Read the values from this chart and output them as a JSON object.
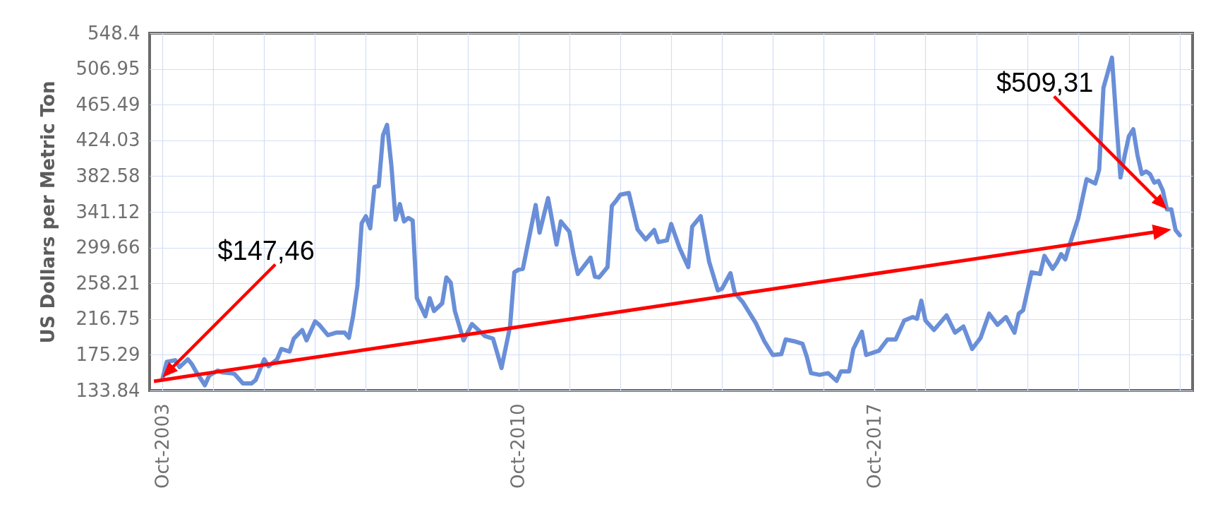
{
  "chart_data": {
    "type": "line",
    "ylabel": "US Dollars per Metric Ton",
    "x": [
      "2003-10",
      "2003-11",
      "2004-01",
      "2004-02",
      "2004-04",
      "2004-05",
      "2004-06",
      "2004-08",
      "2004-09",
      "2004-11",
      "2004-12",
      "2005-02",
      "2005-03",
      "2005-05",
      "2005-07",
      "2005-08",
      "2005-10",
      "2005-11",
      "2006-01",
      "2006-02",
      "2006-04",
      "2006-05",
      "2006-07",
      "2006-08",
      "2006-10",
      "2006-11",
      "2007-01",
      "2007-03",
      "2007-05",
      "2007-06",
      "2007-07",
      "2007-08",
      "2007-09",
      "2007-10",
      "2007-11",
      "2007-12",
      "2008-01",
      "2008-02",
      "2008-03",
      "2008-04",
      "2008-05",
      "2008-06",
      "2008-07",
      "2008-08",
      "2008-09",
      "2008-10",
      "2008-12",
      "2009-01",
      "2009-02",
      "2009-04",
      "2009-05",
      "2009-06",
      "2009-07",
      "2009-09",
      "2009-11",
      "2010-02",
      "2010-04",
      "2010-06",
      "2010-08",
      "2010-09",
      "2010-10",
      "2010-11",
      "2011-02",
      "2011-03",
      "2011-05",
      "2011-07",
      "2011-08",
      "2011-10",
      "2011-11",
      "2011-12",
      "2012-03",
      "2012-04",
      "2012-05",
      "2012-07",
      "2012-08",
      "2012-09",
      "2012-10",
      "2012-12",
      "2013-02",
      "2013-04",
      "2013-06",
      "2013-07",
      "2013-09",
      "2013-10",
      "2013-12",
      "2014-02",
      "2014-03",
      "2014-05",
      "2014-07",
      "2014-09",
      "2014-10",
      "2014-12",
      "2015-01",
      "2015-03",
      "2015-06",
      "2015-08",
      "2015-10",
      "2015-12",
      "2016-01",
      "2016-03",
      "2016-05",
      "2016-06",
      "2016-07",
      "2016-09",
      "2016-11",
      "2017-01",
      "2017-02",
      "2017-04",
      "2017-05",
      "2017-07",
      "2017-08",
      "2017-11",
      "2018-01",
      "2018-03",
      "2018-05",
      "2018-07",
      "2018-08",
      "2018-09",
      "2018-10",
      "2018-12",
      "2019-03",
      "2019-05",
      "2019-07",
      "2019-09",
      "2019-11",
      "2020-01",
      "2020-03",
      "2020-05",
      "2020-07",
      "2020-08",
      "2020-09",
      "2020-11",
      "2021-01",
      "2021-02",
      "2021-04",
      "2021-05",
      "2021-06",
      "2021-07",
      "2021-08",
      "2021-10",
      "2021-12",
      "2022-02",
      "2022-03",
      "2022-04",
      "2022-06",
      "2022-07",
      "2022-08",
      "2022-09",
      "2022-10",
      "2022-11",
      "2022-12",
      "2023-01",
      "2023-02",
      "2023-03",
      "2023-04",
      "2023-05",
      "2023-06",
      "2023-07",
      "2023-08",
      "2023-09",
      "2023-10"
    ],
    "series": [
      {
        "color": "#6a8fd8",
        "values": [
          147,
          167,
          169,
          161,
          170,
          164,
          155,
          140,
          151,
          157,
          155,
          154,
          153,
          142,
          142,
          146,
          170,
          162,
          170,
          182,
          179,
          194,
          204,
          192,
          214,
          210,
          198,
          201,
          201,
          195,
          220,
          255,
          328,
          336,
          322,
          370,
          371,
          430,
          442,
          395,
          332,
          350,
          330,
          334,
          331,
          241,
          220,
          241,
          226,
          235,
          265,
          259,
          226,
          192,
          211,
          197,
          194,
          160,
          208,
          271,
          274,
          275,
          349,
          317,
          357,
          303,
          330,
          318,
          291,
          269,
          288,
          266,
          265,
          277,
          348,
          354,
          361,
          363,
          321,
          309,
          320,
          306,
          308,
          327,
          299,
          277,
          324,
          336,
          283,
          250,
          252,
          270,
          247,
          236,
          212,
          191,
          175,
          176,
          193,
          191,
          188,
          173,
          154,
          152,
          154,
          145,
          156,
          156,
          182,
          202,
          175,
          180,
          193,
          193,
          215,
          219,
          217,
          238,
          215,
          204,
          221,
          201,
          208,
          182,
          195,
          223,
          210,
          219,
          201,
          223,
          227,
          271,
          269,
          290,
          275,
          282,
          292,
          286,
          303,
          333,
          379,
          374,
          390,
          485,
          520,
          450,
          381,
          407,
          429,
          437,
          407,
          385,
          388,
          385,
          375,
          377,
          366,
          344,
          344,
          320,
          314
        ]
      }
    ],
    "xlim": [
      "2003-07",
      "2024-01"
    ],
    "xticks": [
      {
        "value": "2003-10",
        "label": "Oct-2003"
      },
      {
        "value": "2004-10",
        "label": null
      },
      {
        "value": "2005-10",
        "label": null
      },
      {
        "value": "2006-10",
        "label": null
      },
      {
        "value": "2007-10",
        "label": null
      },
      {
        "value": "2008-10",
        "label": null
      },
      {
        "value": "2009-10",
        "label": null
      },
      {
        "value": "2010-10",
        "label": "Oct-2010"
      },
      {
        "value": "2011-10",
        "label": null
      },
      {
        "value": "2012-10",
        "label": null
      },
      {
        "value": "2013-10",
        "label": null
      },
      {
        "value": "2014-10",
        "label": null
      },
      {
        "value": "2015-10",
        "label": null
      },
      {
        "value": "2016-10",
        "label": null
      },
      {
        "value": "2017-10",
        "label": "Oct-2017"
      },
      {
        "value": "2018-10",
        "label": null
      },
      {
        "value": "2019-10",
        "label": null
      },
      {
        "value": "2020-10",
        "label": null
      },
      {
        "value": "2021-10",
        "label": null
      },
      {
        "value": "2022-10",
        "label": null
      },
      {
        "value": "2023-10",
        "label": null
      }
    ],
    "ylim": [
      133.84,
      548.4
    ],
    "yticks": [
      133.84,
      175.29,
      216.75,
      258.21,
      299.66,
      341.12,
      382.58,
      424.03,
      465.49,
      506.95,
      548.4
    ],
    "grid": true,
    "annotations": [
      {
        "text": "$147,46",
        "x": "2003-10",
        "y": 149
      },
      {
        "text": "$509,31",
        "x": "2023-07",
        "y": 344
      }
    ]
  }
}
